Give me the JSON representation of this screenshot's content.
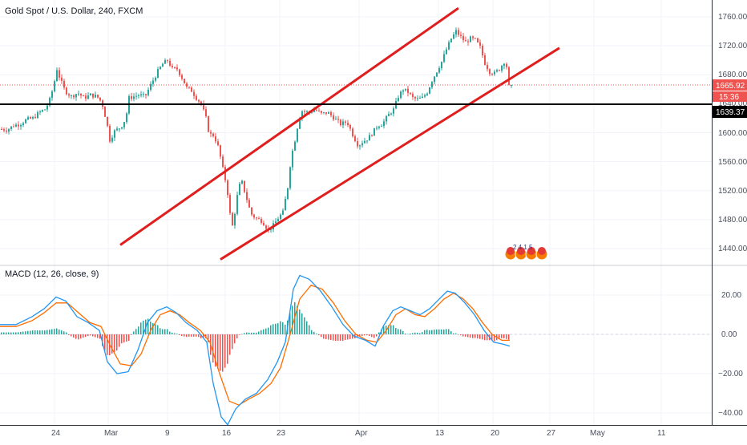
{
  "header": {
    "symbol_title": "Gold Spot / U.S. Dollar, 240, FXCM"
  },
  "price_axis": {
    "ticks": [
      "1760.00",
      "1720.00",
      "1680.00",
      "1640.00",
      "1600.00",
      "1560.00",
      "1520.00",
      "1480.00",
      "1440.00"
    ]
  },
  "price_tags": {
    "last_price": "1665.92",
    "countdown": "15:36",
    "level": "1639.37"
  },
  "macd": {
    "label": "MACD (12, 26, close, 9)",
    "ticks": [
      "20.00",
      "0.00",
      "−20.00",
      "−40.00"
    ]
  },
  "time_axis": {
    "labels": [
      "24",
      "Mar",
      "9",
      "16",
      "23",
      "Apr",
      "13",
      "20",
      "27",
      "May",
      "11"
    ]
  },
  "colors": {
    "up": "#26a69a",
    "down": "#ef5350",
    "channel": "#e01e1e",
    "level_line": "#000000",
    "macd_line": "#2196f3",
    "signal_line": "#ff6d00",
    "last_price_tag": "#ef5350"
  },
  "events_badge": {
    "icons": [
      "us-flag-icon",
      "us-flag-icon",
      "us-flag-icon",
      "us-flag-icon"
    ],
    "text": "2 4 1 5"
  },
  "chart_data": {
    "type": "candlestick",
    "title": "Gold Spot / U.S. Dollar, 240, FXCM",
    "price_range": [
      1420,
      1780
    ],
    "x_labels": [
      "24",
      "Mar",
      "9",
      "16",
      "23",
      "Apr",
      "13",
      "20",
      "27",
      "May",
      "11"
    ],
    "price_path": [
      [
        0,
        1605
      ],
      [
        8,
        1604
      ],
      [
        16,
        1610
      ],
      [
        24,
        1612
      ],
      [
        32,
        1618
      ],
      [
        40,
        1620
      ],
      [
        48,
        1628
      ],
      [
        56,
        1633
      ],
      [
        62,
        1648
      ],
      [
        66,
        1666
      ],
      [
        70,
        1688
      ],
      [
        74,
        1674
      ],
      [
        80,
        1658
      ],
      [
        88,
        1650
      ],
      [
        96,
        1655
      ],
      [
        104,
        1648
      ],
      [
        112,
        1652
      ],
      [
        120,
        1650
      ],
      [
        126,
        1642
      ],
      [
        132,
        1615
      ],
      [
        136,
        1590
      ],
      [
        142,
        1602
      ],
      [
        150,
        1608
      ],
      [
        156,
        1620
      ],
      [
        160,
        1648
      ],
      [
        166,
        1650
      ],
      [
        172,
        1652
      ],
      [
        180,
        1650
      ],
      [
        188,
        1668
      ],
      [
        196,
        1685
      ],
      [
        202,
        1695
      ],
      [
        208,
        1700
      ],
      [
        214,
        1688
      ],
      [
        220,
        1688
      ],
      [
        226,
        1676
      ],
      [
        232,
        1662
      ],
      [
        238,
        1658
      ],
      [
        244,
        1648
      ],
      [
        250,
        1640
      ],
      [
        256,
        1620
      ],
      [
        260,
        1598
      ],
      [
        266,
        1596
      ],
      [
        272,
        1578
      ],
      [
        276,
        1555
      ],
      [
        280,
        1535
      ],
      [
        284,
        1510
      ],
      [
        288,
        1465
      ],
      [
        292,
        1490
      ],
      [
        296,
        1520
      ],
      [
        300,
        1535
      ],
      [
        306,
        1512
      ],
      [
        312,
        1488
      ],
      [
        318,
        1482
      ],
      [
        326,
        1478
      ],
      [
        334,
        1465
      ],
      [
        340,
        1472
      ],
      [
        346,
        1482
      ],
      [
        352,
        1490
      ],
      [
        358,
        1525
      ],
      [
        362,
        1565
      ],
      [
        368,
        1595
      ],
      [
        372,
        1620
      ],
      [
        376,
        1630
      ],
      [
        384,
        1628
      ],
      [
        392,
        1632
      ],
      [
        400,
        1626
      ],
      [
        408,
        1628
      ],
      [
        416,
        1620
      ],
      [
        424,
        1612
      ],
      [
        432,
        1615
      ],
      [
        440,
        1595
      ],
      [
        446,
        1582
      ],
      [
        452,
        1588
      ],
      [
        458,
        1592
      ],
      [
        464,
        1600
      ],
      [
        470,
        1610
      ],
      [
        476,
        1612
      ],
      [
        484,
        1625
      ],
      [
        490,
        1632
      ],
      [
        496,
        1650
      ],
      [
        502,
        1660
      ],
      [
        508,
        1656
      ],
      [
        514,
        1648
      ],
      [
        520,
        1646
      ],
      [
        526,
        1648
      ],
      [
        532,
        1656
      ],
      [
        538,
        1672
      ],
      [
        544,
        1685
      ],
      [
        550,
        1698
      ],
      [
        556,
        1715
      ],
      [
        562,
        1730
      ],
      [
        568,
        1740
      ],
      [
        574,
        1732
      ],
      [
        580,
        1725
      ],
      [
        586,
        1730
      ],
      [
        592,
        1728
      ],
      [
        598,
        1718
      ],
      [
        604,
        1696
      ],
      [
        610,
        1684
      ],
      [
        616,
        1682
      ],
      [
        622,
        1688
      ],
      [
        628,
        1698
      ],
      [
        634,
        1685
      ],
      [
        637,
        1666
      ]
    ],
    "channel": {
      "upper": {
        "from": [
          150,
          1445
        ],
        "to": [
          572,
          1772
        ]
      },
      "lower": {
        "from": [
          275,
          1425
        ],
        "to": [
          698,
          1717
        ]
      }
    },
    "horizontal_level": 1639.37,
    "last_price": 1665.92,
    "macd": {
      "range": [
        -45,
        32
      ],
      "macd_line": [
        [
          0,
          5
        ],
        [
          20,
          5
        ],
        [
          40,
          9
        ],
        [
          55,
          13
        ],
        [
          70,
          19
        ],
        [
          82,
          17
        ],
        [
          96,
          9
        ],
        [
          110,
          6
        ],
        [
          124,
          2
        ],
        [
          134,
          -14
        ],
        [
          146,
          -20
        ],
        [
          160,
          -19
        ],
        [
          172,
          -8
        ],
        [
          184,
          6
        ],
        [
          196,
          12
        ],
        [
          208,
          14
        ],
        [
          220,
          11
        ],
        [
          232,
          6
        ],
        [
          246,
          2
        ],
        [
          258,
          -4
        ],
        [
          266,
          -25
        ],
        [
          276,
          -42
        ],
        [
          284,
          -46
        ],
        [
          294,
          -38
        ],
        [
          306,
          -33
        ],
        [
          320,
          -30
        ],
        [
          334,
          -23
        ],
        [
          346,
          -14
        ],
        [
          356,
          -4
        ],
        [
          366,
          23
        ],
        [
          374,
          30
        ],
        [
          386,
          28
        ],
        [
          400,
          22
        ],
        [
          414,
          14
        ],
        [
          428,
          5
        ],
        [
          442,
          -1
        ],
        [
          456,
          -3
        ],
        [
          468,
          -6
        ],
        [
          478,
          4
        ],
        [
          490,
          12
        ],
        [
          500,
          14
        ],
        [
          512,
          12
        ],
        [
          524,
          10
        ],
        [
          536,
          13
        ],
        [
          548,
          18
        ],
        [
          558,
          22
        ],
        [
          568,
          21
        ],
        [
          580,
          16
        ],
        [
          592,
          10
        ],
        [
          604,
          2
        ],
        [
          616,
          -4
        ],
        [
          628,
          -5
        ],
        [
          636,
          -6
        ]
      ],
      "signal_line": [
        [
          0,
          4
        ],
        [
          20,
          4
        ],
        [
          40,
          7
        ],
        [
          55,
          11
        ],
        [
          70,
          16
        ],
        [
          84,
          16
        ],
        [
          98,
          11
        ],
        [
          112,
          6
        ],
        [
          126,
          4
        ],
        [
          138,
          -6
        ],
        [
          150,
          -15
        ],
        [
          164,
          -16
        ],
        [
          176,
          -10
        ],
        [
          188,
          2
        ],
        [
          200,
          10
        ],
        [
          212,
          12
        ],
        [
          224,
          10
        ],
        [
          236,
          6
        ],
        [
          250,
          2
        ],
        [
          262,
          -4
        ],
        [
          274,
          -20
        ],
        [
          286,
          -34
        ],
        [
          298,
          -36
        ],
        [
          310,
          -33
        ],
        [
          324,
          -30
        ],
        [
          338,
          -25
        ],
        [
          350,
          -17
        ],
        [
          362,
          0
        ],
        [
          374,
          18
        ],
        [
          388,
          25
        ],
        [
          402,
          23
        ],
        [
          416,
          16
        ],
        [
          430,
          7
        ],
        [
          444,
          0
        ],
        [
          458,
          -3
        ],
        [
          470,
          -4
        ],
        [
          482,
          2
        ],
        [
          494,
          10
        ],
        [
          506,
          13
        ],
        [
          518,
          10
        ],
        [
          530,
          9
        ],
        [
          542,
          13
        ],
        [
          554,
          18
        ],
        [
          566,
          21
        ],
        [
          578,
          18
        ],
        [
          590,
          13
        ],
        [
          602,
          6
        ],
        [
          614,
          0
        ],
        [
          626,
          -3
        ],
        [
          636,
          -3
        ]
      ]
    }
  }
}
